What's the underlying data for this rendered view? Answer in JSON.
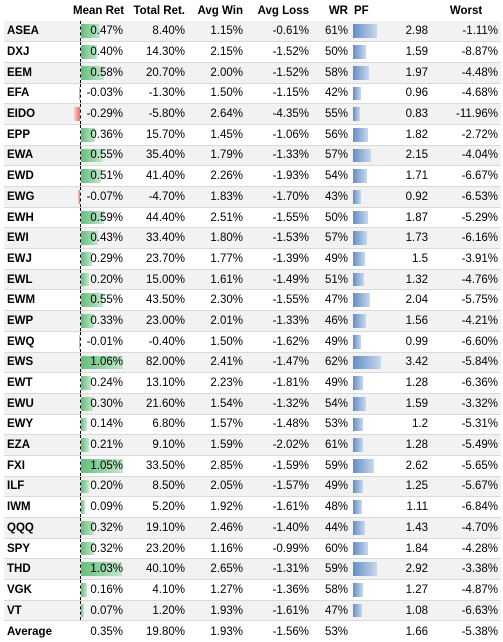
{
  "table": {
    "columns": [
      "",
      "Mean Ret",
      "Total Ret.",
      "Avg Win",
      "Avg Loss",
      "WR",
      "PF",
      "",
      "Worst"
    ],
    "rows": [
      {
        "ticker": "ASEA",
        "mean_ret": "0.47%",
        "mean_ret_value": 0.47,
        "total_ret": "8.40%",
        "avg_win": "1.15%",
        "avg_loss": "-0.61%",
        "wr": "61%",
        "pf": "2.98",
        "pf_value": 2.98,
        "worst": "-1.11%"
      },
      {
        "ticker": "DXJ",
        "mean_ret": "0.40%",
        "mean_ret_value": 0.4,
        "total_ret": "14.30%",
        "avg_win": "2.15%",
        "avg_loss": "-1.52%",
        "wr": "50%",
        "pf": "1.59",
        "pf_value": 1.59,
        "worst": "-8.87%"
      },
      {
        "ticker": "EEM",
        "mean_ret": "0.58%",
        "mean_ret_value": 0.58,
        "total_ret": "20.70%",
        "avg_win": "2.00%",
        "avg_loss": "-1.52%",
        "wr": "58%",
        "pf": "1.97",
        "pf_value": 1.97,
        "worst": "-4.48%"
      },
      {
        "ticker": "EFA",
        "mean_ret": "-0.03%",
        "mean_ret_value": -0.03,
        "total_ret": "-1.30%",
        "avg_win": "1.50%",
        "avg_loss": "-1.15%",
        "wr": "42%",
        "pf": "0.96",
        "pf_value": 0.96,
        "worst": "-4.68%"
      },
      {
        "ticker": "EIDO",
        "mean_ret": "-0.29%",
        "mean_ret_value": -0.29,
        "total_ret": "-5.80%",
        "avg_win": "2.64%",
        "avg_loss": "-4.35%",
        "wr": "55%",
        "pf": "0.83",
        "pf_value": 0.83,
        "worst": "-11.96%"
      },
      {
        "ticker": "EPP",
        "mean_ret": "0.36%",
        "mean_ret_value": 0.36,
        "total_ret": "15.70%",
        "avg_win": "1.45%",
        "avg_loss": "-1.06%",
        "wr": "56%",
        "pf": "1.82",
        "pf_value": 1.82,
        "worst": "-2.72%"
      },
      {
        "ticker": "EWA",
        "mean_ret": "0.55%",
        "mean_ret_value": 0.55,
        "total_ret": "35.40%",
        "avg_win": "1.79%",
        "avg_loss": "-1.33%",
        "wr": "57%",
        "pf": "2.15",
        "pf_value": 2.15,
        "worst": "-4.04%"
      },
      {
        "ticker": "EWD",
        "mean_ret": "0.51%",
        "mean_ret_value": 0.51,
        "total_ret": "41.40%",
        "avg_win": "2.26%",
        "avg_loss": "-1.93%",
        "wr": "54%",
        "pf": "1.71",
        "pf_value": 1.71,
        "worst": "-6.67%"
      },
      {
        "ticker": "EWG",
        "mean_ret": "-0.07%",
        "mean_ret_value": -0.07,
        "total_ret": "-4.70%",
        "avg_win": "1.83%",
        "avg_loss": "-1.70%",
        "wr": "43%",
        "pf": "0.92",
        "pf_value": 0.92,
        "worst": "-6.53%"
      },
      {
        "ticker": "EWH",
        "mean_ret": "0.59%",
        "mean_ret_value": 0.59,
        "total_ret": "44.40%",
        "avg_win": "2.51%",
        "avg_loss": "-1.55%",
        "wr": "50%",
        "pf": "1.87",
        "pf_value": 1.87,
        "worst": "-5.29%"
      },
      {
        "ticker": "EWI",
        "mean_ret": "0.43%",
        "mean_ret_value": 0.43,
        "total_ret": "33.40%",
        "avg_win": "1.80%",
        "avg_loss": "-1.53%",
        "wr": "57%",
        "pf": "1.73",
        "pf_value": 1.73,
        "worst": "-6.16%"
      },
      {
        "ticker": "EWJ",
        "mean_ret": "0.29%",
        "mean_ret_value": 0.29,
        "total_ret": "23.70%",
        "avg_win": "1.77%",
        "avg_loss": "-1.39%",
        "wr": "49%",
        "pf": "1.5",
        "pf_value": 1.5,
        "worst": "-3.91%"
      },
      {
        "ticker": "EWL",
        "mean_ret": "0.20%",
        "mean_ret_value": 0.2,
        "total_ret": "15.00%",
        "avg_win": "1.61%",
        "avg_loss": "-1.49%",
        "wr": "51%",
        "pf": "1.32",
        "pf_value": 1.32,
        "worst": "-4.76%"
      },
      {
        "ticker": "EWM",
        "mean_ret": "0.55%",
        "mean_ret_value": 0.55,
        "total_ret": "43.50%",
        "avg_win": "2.30%",
        "avg_loss": "-1.55%",
        "wr": "47%",
        "pf": "2.04",
        "pf_value": 2.04,
        "worst": "-5.75%"
      },
      {
        "ticker": "EWP",
        "mean_ret": "0.33%",
        "mean_ret_value": 0.33,
        "total_ret": "23.00%",
        "avg_win": "2.01%",
        "avg_loss": "-1.33%",
        "wr": "46%",
        "pf": "1.56",
        "pf_value": 1.56,
        "worst": "-4.21%"
      },
      {
        "ticker": "EWQ",
        "mean_ret": "-0.01%",
        "mean_ret_value": -0.01,
        "total_ret": "-0.40%",
        "avg_win": "1.50%",
        "avg_loss": "-1.62%",
        "wr": "49%",
        "pf": "0.99",
        "pf_value": 0.99,
        "worst": "-6.60%"
      },
      {
        "ticker": "EWS",
        "mean_ret": "1.06%",
        "mean_ret_value": 1.06,
        "total_ret": "82.00%",
        "avg_win": "2.41%",
        "avg_loss": "-1.47%",
        "wr": "62%",
        "pf": "3.42",
        "pf_value": 3.42,
        "worst": "-5.84%"
      },
      {
        "ticker": "EWT",
        "mean_ret": "0.24%",
        "mean_ret_value": 0.24,
        "total_ret": "13.10%",
        "avg_win": "2.23%",
        "avg_loss": "-1.81%",
        "wr": "49%",
        "pf": "1.28",
        "pf_value": 1.28,
        "worst": "-6.36%"
      },
      {
        "ticker": "EWU",
        "mean_ret": "0.30%",
        "mean_ret_value": 0.3,
        "total_ret": "21.60%",
        "avg_win": "1.54%",
        "avg_loss": "-1.32%",
        "wr": "54%",
        "pf": "1.59",
        "pf_value": 1.59,
        "worst": "-3.32%"
      },
      {
        "ticker": "EWY",
        "mean_ret": "0.14%",
        "mean_ret_value": 0.14,
        "total_ret": "6.80%",
        "avg_win": "1.57%",
        "avg_loss": "-1.48%",
        "wr": "53%",
        "pf": "1.2",
        "pf_value": 1.2,
        "worst": "-5.31%"
      },
      {
        "ticker": "EZA",
        "mean_ret": "0.21%",
        "mean_ret_value": 0.21,
        "total_ret": "9.10%",
        "avg_win": "1.59%",
        "avg_loss": "-2.02%",
        "wr": "61%",
        "pf": "1.28",
        "pf_value": 1.28,
        "worst": "-5.49%"
      },
      {
        "ticker": "FXI",
        "mean_ret": "1.05%",
        "mean_ret_value": 1.05,
        "total_ret": "33.50%",
        "avg_win": "2.85%",
        "avg_loss": "-1.59%",
        "wr": "59%",
        "pf": "2.62",
        "pf_value": 2.62,
        "worst": "-5.65%"
      },
      {
        "ticker": "ILF",
        "mean_ret": "0.20%",
        "mean_ret_value": 0.2,
        "total_ret": "8.50%",
        "avg_win": "2.05%",
        "avg_loss": "-1.57%",
        "wr": "49%",
        "pf": "1.25",
        "pf_value": 1.25,
        "worst": "-5.67%"
      },
      {
        "ticker": "IWM",
        "mean_ret": "0.09%",
        "mean_ret_value": 0.09,
        "total_ret": "5.20%",
        "avg_win": "1.92%",
        "avg_loss": "-1.61%",
        "wr": "48%",
        "pf": "1.11",
        "pf_value": 1.11,
        "worst": "-6.84%"
      },
      {
        "ticker": "QQQ",
        "mean_ret": "0.32%",
        "mean_ret_value": 0.32,
        "total_ret": "19.10%",
        "avg_win": "2.46%",
        "avg_loss": "-1.40%",
        "wr": "44%",
        "pf": "1.43",
        "pf_value": 1.43,
        "worst": "-4.70%"
      },
      {
        "ticker": "SPY",
        "mean_ret": "0.32%",
        "mean_ret_value": 0.32,
        "total_ret": "23.20%",
        "avg_win": "1.16%",
        "avg_loss": "-0.99%",
        "wr": "60%",
        "pf": "1.84",
        "pf_value": 1.84,
        "worst": "-4.28%"
      },
      {
        "ticker": "THD",
        "mean_ret": "1.03%",
        "mean_ret_value": 1.03,
        "total_ret": "40.10%",
        "avg_win": "2.65%",
        "avg_loss": "-1.31%",
        "wr": "59%",
        "pf": "2.92",
        "pf_value": 2.92,
        "worst": "-3.38%"
      },
      {
        "ticker": "VGK",
        "mean_ret": "0.16%",
        "mean_ret_value": 0.16,
        "total_ret": "4.10%",
        "avg_win": "1.27%",
        "avg_loss": "-1.36%",
        "wr": "58%",
        "pf": "1.27",
        "pf_value": 1.27,
        "worst": "-4.87%"
      },
      {
        "ticker": "VT",
        "mean_ret": "0.07%",
        "mean_ret_value": 0.07,
        "total_ret": "1.20%",
        "avg_win": "1.93%",
        "avg_loss": "-1.61%",
        "wr": "47%",
        "pf": "1.08",
        "pf_value": 1.08,
        "worst": "-6.63%"
      }
    ],
    "average": {
      "label": "Average",
      "mean_ret": "0.35%",
      "total_ret": "19.80%",
      "avg_win": "1.93%",
      "avg_loss": "-1.56%",
      "wr": "53%",
      "pf": "1.66",
      "worst": "-5.38%"
    },
    "colors": {
      "positive_bar": "#63be7b",
      "negative_bar": "#f8696b",
      "pf_bar": "#638ec6"
    }
  }
}
